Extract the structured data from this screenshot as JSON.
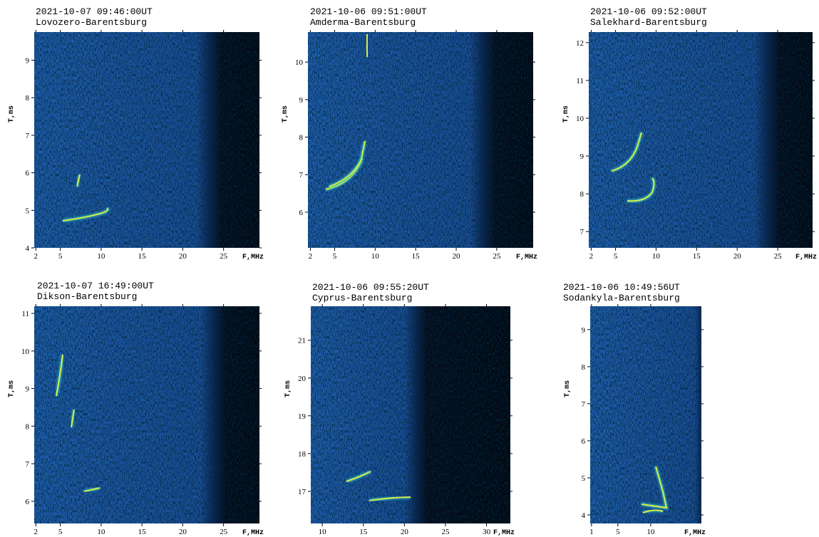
{
  "chart_data": [
    {
      "type": "spectrogram",
      "title": "2021-10-07 09:46:00UT",
      "subtitle": "Lovozero-Barentsburg",
      "xlabel": "F,MHz",
      "ylabel": "T,ms",
      "xlim": [
        1.8,
        29.4
      ],
      "xticks": [
        2,
        5,
        10,
        15,
        20,
        25
      ],
      "ylim": [
        4,
        9.75
      ],
      "yticks": [
        4,
        5,
        6,
        7,
        8,
        9
      ]
    },
    {
      "type": "spectrogram",
      "title": "2021-10-06 09:51:00UT",
      "subtitle": "Amderma-Barentsburg",
      "xlabel": "F,MHz",
      "ylabel": "T,ms",
      "xlim": [
        1.7,
        29.5
      ],
      "xticks": [
        2,
        5,
        10,
        15,
        20,
        25
      ],
      "ylim": [
        5.05,
        10.8
      ],
      "yticks": [
        6,
        7,
        8,
        9,
        10
      ]
    },
    {
      "type": "spectrogram",
      "title": "2021-10-06 09:52:00UT",
      "subtitle": "Salekhard-Barentsburg",
      "xlabel": "F,MHz",
      "ylabel": "T,ms",
      "xlim": [
        1.7,
        29.3
      ],
      "xticks": [
        2,
        5,
        10,
        15,
        20,
        25
      ],
      "ylim": [
        6.57,
        12.28
      ],
      "yticks": [
        7,
        8,
        9,
        10,
        11,
        12
      ]
    },
    {
      "type": "spectrogram",
      "title": "2021-10-07 16:49:00UT",
      "subtitle": "Dikson-Barentsburg",
      "xlabel": "F,MHz",
      "ylabel": "T,ms",
      "xlim": [
        1.8,
        29.4
      ],
      "xticks": [
        2,
        5,
        10,
        15,
        20,
        25
      ],
      "ylim": [
        5.41,
        11.19
      ],
      "yticks": [
        6,
        7,
        8,
        9,
        10,
        11
      ]
    },
    {
      "type": "spectrogram",
      "title": "2021-10-06 09:55:20UT",
      "subtitle": "Cyprus-Barentsburg",
      "xlabel": "F,MHz",
      "ylabel": "T,ms",
      "xlim": [
        8.6,
        32.9
      ],
      "xticks": [
        10,
        15,
        20,
        25,
        30
      ],
      "ylim": [
        16.15,
        21.9
      ],
      "yticks": [
        17,
        18,
        19,
        20,
        21
      ]
    },
    {
      "type": "spectrogram",
      "title": "2021-10-06 10:49:56UT",
      "subtitle": "Sodankyla-Barentsburg",
      "xlabel": "F,MHz",
      "ylabel": "T,ms",
      "xlim": [
        0.8,
        17.7
      ],
      "xticks": [
        1,
        5,
        10
      ],
      "ylim": [
        3.77,
        9.63
      ],
      "yticks": [
        4,
        5,
        6,
        7,
        8,
        9
      ]
    }
  ]
}
